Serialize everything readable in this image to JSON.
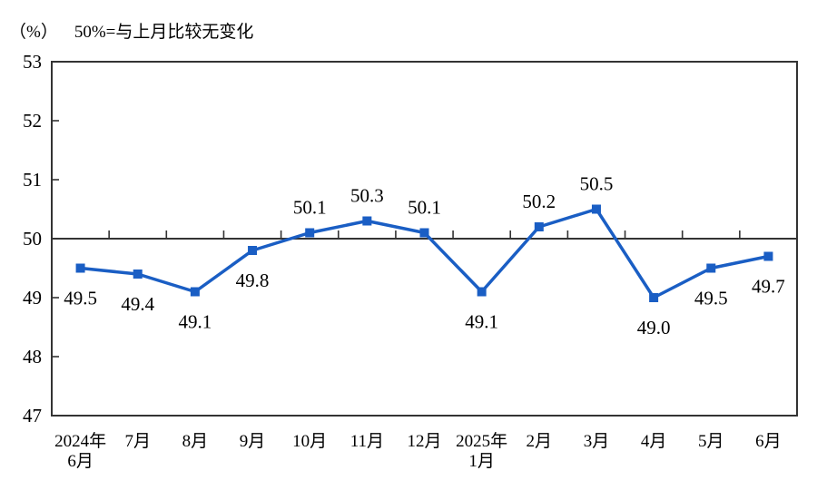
{
  "header": {
    "unit_label": "（%）",
    "subtitle": "50%=与上月比较无变化"
  },
  "chart_data": {
    "type": "line",
    "title": "（%） 50%=与上月比较无变化",
    "categories": [
      "2024年\n6月",
      "7月",
      "8月",
      "9月",
      "10月",
      "11月",
      "12月",
      "2025年\n1月",
      "2月",
      "3月",
      "4月",
      "5月",
      "6月"
    ],
    "values": [
      49.5,
      49.4,
      49.1,
      49.8,
      50.1,
      50.3,
      50.1,
      49.1,
      50.2,
      50.5,
      49.0,
      49.5,
      49.7
    ],
    "data_labels": [
      "49.5",
      "49.4",
      "49.1",
      "49.8",
      "50.1",
      "50.3",
      "50.1",
      "49.1",
      "50.2",
      "50.5",
      "49.0",
      "49.5",
      "49.7"
    ],
    "xlabel": "",
    "ylabel": "",
    "ylim": [
      47,
      53
    ],
    "yticks": [
      47,
      48,
      49,
      50,
      51,
      52,
      53
    ],
    "reference_line": 50,
    "grid": false,
    "legend": "none",
    "line_color": "#1A5EC4",
    "marker_shape": "square",
    "axis_color": "#333333",
    "text_color": "#000000"
  }
}
